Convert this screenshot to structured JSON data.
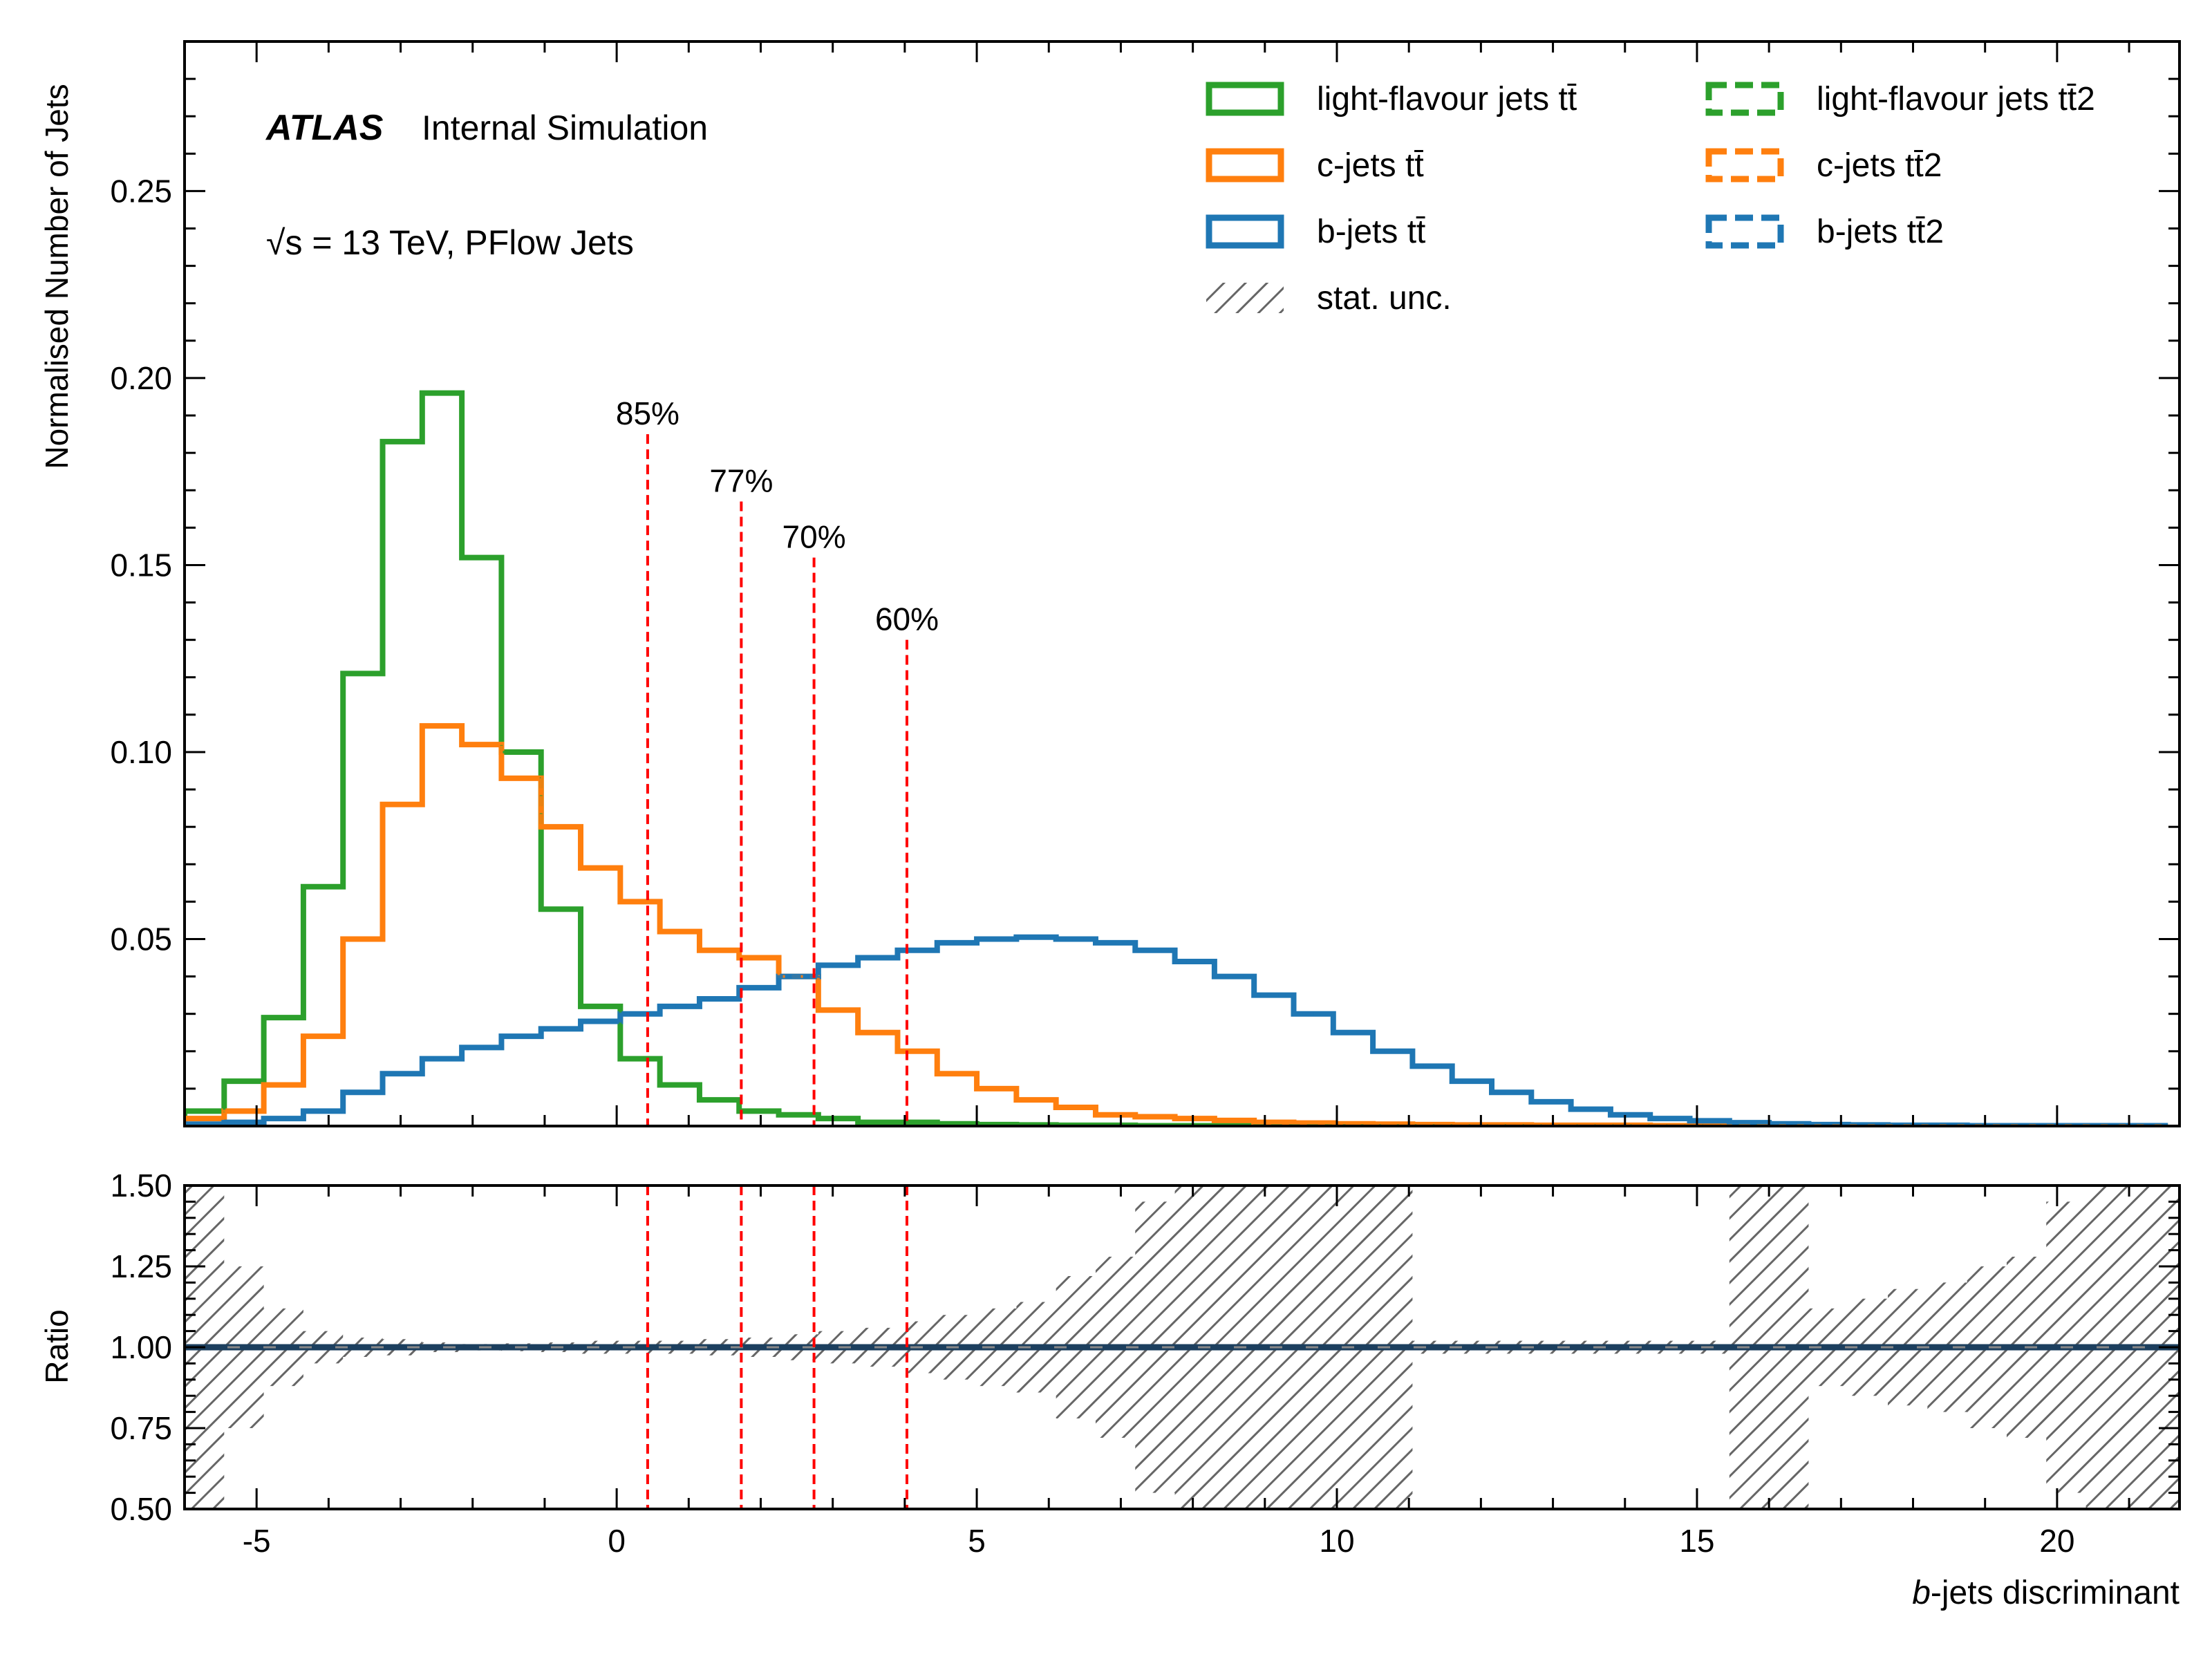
{
  "colors": {
    "light": "#2ca02c",
    "c": "#ff7f0e",
    "b": "#1f77b4",
    "wp": "#ff0000",
    "hatch": "#666666",
    "ratio_line": "#1c3f5e"
  },
  "annotation": {
    "atlas": "ATLAS",
    "internal": "Internal Simulation",
    "energy": "√s = 13 TeV, PFlow Jets"
  },
  "legend": {
    "items": [
      {
        "label": "light-flavour jets tt̄",
        "color": "#2ca02c",
        "style": "solid"
      },
      {
        "label": "c-jets tt̄",
        "color": "#ff7f0e",
        "style": "solid"
      },
      {
        "label": "b-jets tt̄",
        "color": "#1f77b4",
        "style": "solid"
      },
      {
        "label": "stat. unc.",
        "color": "#666666",
        "style": "hatch"
      },
      {
        "label": "light-flavour jets tt̄2",
        "color": "#2ca02c",
        "style": "dashed"
      },
      {
        "label": "c-jets tt̄2",
        "color": "#ff7f0e",
        "style": "dashed"
      },
      {
        "label": "b-jets tt̄2",
        "color": "#1f77b4",
        "style": "dashed"
      }
    ],
    "placement": "top-right"
  },
  "chart_data": [
    {
      "type": "line",
      "subtype": "step-histogram",
      "ylabel": "Normalised Number of Jets",
      "xlim": [
        -6.0,
        21.7
      ],
      "ylim": [
        0,
        0.29
      ],
      "yticks": [
        0.05,
        0.1,
        0.15,
        0.2,
        0.25
      ],
      "ytick_labels": [
        "0.05",
        "0.10",
        "0.15",
        "0.20",
        "0.25"
      ],
      "grid": false,
      "bin_edges": [
        -6.0,
        -5.45,
        -4.9,
        -4.35,
        -3.8,
        -3.25,
        -2.7,
        -2.15,
        -1.6,
        -1.05,
        -0.5,
        0.05,
        0.6,
        1.15,
        1.7,
        2.25,
        2.8,
        3.35,
        3.9,
        4.45,
        5.0,
        5.55,
        6.1,
        6.65,
        7.2,
        7.75,
        8.3,
        8.85,
        9.4,
        9.95,
        10.5,
        11.05,
        11.6,
        12.15,
        12.7,
        13.25,
        13.8,
        14.35,
        14.9,
        15.45,
        16.0,
        16.55,
        17.1,
        17.65,
        18.2,
        18.75,
        19.3,
        19.85,
        20.4,
        20.95,
        21.5
      ],
      "series": [
        {
          "name": "light-flavour jets tt̄",
          "color": "#2ca02c",
          "style": "solid",
          "values": [
            0.004,
            0.012,
            0.029,
            0.064,
            0.121,
            0.183,
            0.196,
            0.152,
            0.1,
            0.058,
            0.032,
            0.018,
            0.011,
            0.007,
            0.004,
            0.003,
            0.002,
            0.001,
            0.001,
            0.0006,
            0.0004,
            0.0003,
            0.0002,
            0.0002,
            0.0001,
            0.0001,
            0.0001,
            0.0001,
            0.0001,
            0.0001,
            0.0001,
            0.0001,
            0.0001,
            0.0001,
            0.0001,
            0.0001,
            0.0001,
            0.0001,
            0.0001,
            0.0001,
            0.0001,
            0.0001,
            0.0001,
            0.0001,
            0.0001,
            0.0001,
            0.0001,
            0.0001,
            0.0001,
            0.0001
          ]
        },
        {
          "name": "c-jets tt̄",
          "color": "#ff7f0e",
          "style": "solid",
          "values": [
            0.002,
            0.004,
            0.011,
            0.024,
            0.05,
            0.086,
            0.107,
            0.102,
            0.093,
            0.08,
            0.069,
            0.06,
            0.052,
            0.047,
            0.045,
            0.04,
            0.031,
            0.025,
            0.02,
            0.014,
            0.01,
            0.007,
            0.005,
            0.003,
            0.0025,
            0.002,
            0.0015,
            0.001,
            0.0008,
            0.0006,
            0.0005,
            0.0004,
            0.0003,
            0.0003,
            0.0002,
            0.0002,
            0.0002,
            0.0001,
            0.0001,
            0.0001,
            0.0001,
            0.0001,
            0.0001,
            0.0001,
            0.0001,
            0.0001,
            0.0001,
            0.0001,
            0.0001,
            0.0001
          ]
        },
        {
          "name": "b-jets tt̄",
          "color": "#1f77b4",
          "style": "solid",
          "values": [
            0.0005,
            0.001,
            0.002,
            0.004,
            0.009,
            0.014,
            0.018,
            0.021,
            0.024,
            0.026,
            0.028,
            0.03,
            0.032,
            0.034,
            0.037,
            0.04,
            0.043,
            0.045,
            0.047,
            0.049,
            0.05,
            0.0505,
            0.05,
            0.049,
            0.047,
            0.044,
            0.04,
            0.035,
            0.03,
            0.025,
            0.02,
            0.016,
            0.012,
            0.009,
            0.0065,
            0.0045,
            0.003,
            0.002,
            0.0014,
            0.0009,
            0.0006,
            0.0004,
            0.0003,
            0.0002,
            0.0002,
            0.0001,
            0.0001,
            0.0001,
            0.0001,
            0.0001
          ]
        },
        {
          "name": "light-flavour jets tt̄2",
          "color": "#2ca02c",
          "style": "dashed",
          "same_as": "light-flavour jets tt̄"
        },
        {
          "name": "c-jets tt̄2",
          "color": "#ff7f0e",
          "style": "dashed",
          "same_as": "c-jets tt̄"
        },
        {
          "name": "b-jets tt̄2",
          "color": "#1f77b4",
          "style": "dashed",
          "same_as": "b-jets tt̄"
        }
      ],
      "working_points": [
        {
          "label": "85%",
          "x": 0.43,
          "ytop": 0.185
        },
        {
          "label": "77%",
          "x": 1.73,
          "ytop": 0.167
        },
        {
          "label": "70%",
          "x": 2.74,
          "ytop": 0.152
        },
        {
          "label": "60%",
          "x": 4.03,
          "ytop": 0.13
        }
      ]
    },
    {
      "type": "line",
      "subtype": "ratio-panel",
      "ylabel": "Ratio",
      "xlabel": "b-jets discriminant",
      "xlim": [
        -6.0,
        21.7
      ],
      "ylim": [
        0.5,
        1.5
      ],
      "xticks": [
        -5,
        0,
        5,
        10,
        15,
        20
      ],
      "xtick_labels": [
        "-5",
        "0",
        "5",
        "10",
        "15",
        "20"
      ],
      "yticks": [
        0.5,
        0.75,
        1.0,
        1.25,
        1.5
      ],
      "ytick_labels": [
        "0.50",
        "0.75",
        "1.00",
        "1.25",
        "1.50"
      ],
      "ratio_value": 1.0,
      "stat_unc_halfwidth": [
        0.6,
        0.25,
        0.12,
        0.05,
        0.03,
        0.025,
        0.015,
        0.01,
        0.012,
        0.015,
        0.02,
        0.02,
        0.02,
        0.025,
        0.03,
        0.04,
        0.05,
        0.06,
        0.08,
        0.1,
        0.12,
        0.14,
        0.22,
        0.28,
        0.45,
        0.6,
        0.6,
        0.6,
        0.6,
        0.6,
        0.6,
        0.02,
        0.02,
        0.02,
        0.02,
        0.02,
        0.02,
        0.02,
        0.02,
        0.6,
        0.6,
        0.12,
        0.15,
        0.18,
        0.2,
        0.25,
        0.28,
        0.45,
        0.6,
        0.6,
        0.6
      ]
    }
  ]
}
